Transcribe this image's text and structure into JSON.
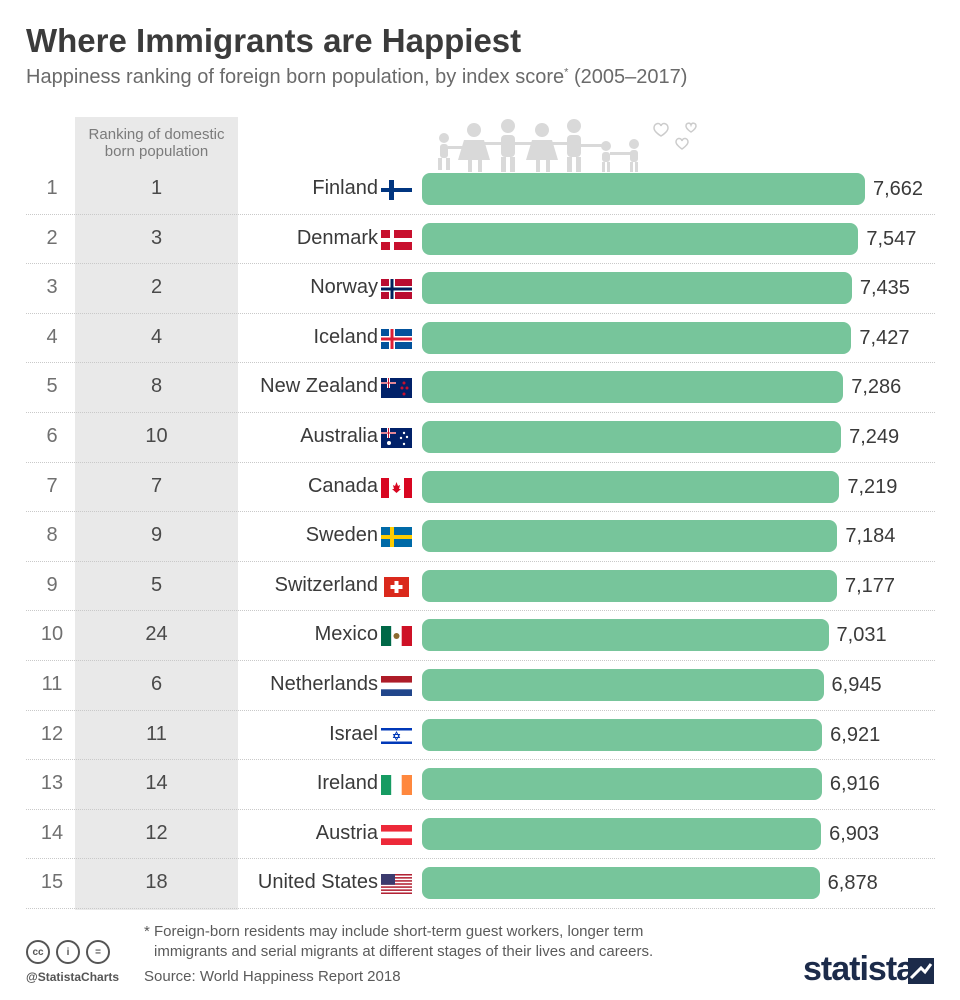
{
  "header": {
    "title": "Where Immigrants are Happiest",
    "subtitle": "Happiness ranking of foreign born population, by index score",
    "subtitle_mark": "*",
    "subtitle_period": "(2005–2017)"
  },
  "domestic_header_line1": "Ranking of domestic",
  "domestic_header_line2": "born population",
  "footer": {
    "footnote_line1": "* Foreign-born residents may include short-term guest workers, longer term",
    "footnote_line2": "immigrants and serial migrants at different stages of their lives and careers.",
    "source": "Source: World Happiness Report 2018",
    "handle": "@StatistaCharts",
    "brand": "statista"
  },
  "colors": {
    "bar": "#77c59b",
    "domestic_column": "#e9e9e9"
  },
  "chart_data": {
    "type": "bar",
    "orientation": "horizontal",
    "title": "Where Immigrants are Happiest",
    "subtitle": "Happiness ranking of foreign born population, by index score* (2005–2017)",
    "categories": [
      "Finland",
      "Denmark",
      "Norway",
      "Iceland",
      "New Zealand",
      "Australia",
      "Canada",
      "Sweden",
      "Switzerland",
      "Mexico",
      "Netherlands",
      "Israel",
      "Ireland",
      "Austria",
      "United States"
    ],
    "values": [
      7.662,
      7.547,
      7.435,
      7.427,
      7.286,
      7.249,
      7.219,
      7.184,
      7.177,
      7.031,
      6.945,
      6.921,
      6.916,
      6.903,
      6.878
    ],
    "labels": [
      "7,662",
      "7,547",
      "7,435",
      "7,427",
      "7,286",
      "7,249",
      "7,219",
      "7,184",
      "7,177",
      "7,031",
      "6,945",
      "6,921",
      "6,916",
      "6,903",
      "6,878"
    ],
    "ranks": [
      "1",
      "2",
      "3",
      "4",
      "5",
      "6",
      "7",
      "8",
      "9",
      "10",
      "11",
      "12",
      "13",
      "14",
      "15"
    ],
    "domestic_ranks": [
      "1",
      "3",
      "2",
      "4",
      "8",
      "10",
      "7",
      "9",
      "5",
      "24",
      "6",
      "11",
      "14",
      "12",
      "18"
    ],
    "flags": [
      "finland-flag",
      "denmark-flag",
      "norway-flag",
      "iceland-flag",
      "new-zealand-flag",
      "australia-flag",
      "canada-flag",
      "sweden-flag",
      "switzerland-flag",
      "mexico-flag",
      "netherlands-flag",
      "israel-flag",
      "ireland-flag",
      "austria-flag",
      "united-states-flag"
    ],
    "xlim": [
      0,
      7.662
    ]
  }
}
